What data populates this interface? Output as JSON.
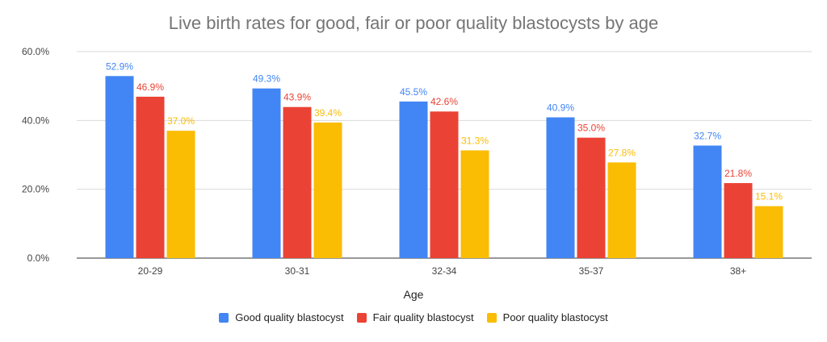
{
  "chart_data": {
    "type": "bar",
    "title": "Live birth rates for good, fair or poor quality blastocysts by age",
    "xlabel": "Age",
    "ylabel": "",
    "categories": [
      "20-29",
      "30-31",
      "32-34",
      "35-37",
      "38+"
    ],
    "series": [
      {
        "name": "Good quality blastocyst",
        "color": "#4285F4",
        "values": [
          52.9,
          49.3,
          45.5,
          40.9,
          32.7
        ],
        "labels": [
          "52.9%",
          "49.3%",
          "45.5%",
          "40.9%",
          "32.7%"
        ]
      },
      {
        "name": "Fair quality blastocyst",
        "color": "#EA4335",
        "values": [
          46.9,
          43.9,
          42.6,
          35.0,
          21.8
        ],
        "labels": [
          "46.9%",
          "43.9%",
          "42.6%",
          "35.0%",
          "21.8%"
        ]
      },
      {
        "name": "Poor quality blastocyst",
        "color": "#FBBC04",
        "values": [
          37.0,
          39.4,
          31.3,
          27.8,
          15.1
        ],
        "labels": [
          "37.0%",
          "39.4%",
          "31.3%",
          "27.8%",
          "15.1%"
        ]
      }
    ],
    "ylim": [
      0,
      60
    ],
    "yticks": [
      0,
      20,
      40,
      60
    ],
    "ytick_labels": [
      "0.0%",
      "20.0%",
      "40.0%",
      "60.0%"
    ],
    "grid": true,
    "legend_position": "bottom"
  }
}
